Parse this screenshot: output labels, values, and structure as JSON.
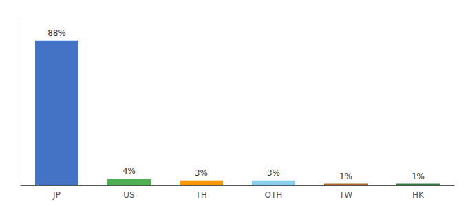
{
  "chart_data": {
    "type": "bar",
    "categories": [
      "JP",
      "US",
      "TH",
      "OTH",
      "TW",
      "HK"
    ],
    "values": [
      88,
      4,
      3,
      3,
      1,
      1
    ],
    "value_labels": [
      "88%",
      "4%",
      "3%",
      "3%",
      "1%",
      "1%"
    ],
    "data_labels": true,
    "colors": [
      "#4472c4",
      "#4caf50",
      "#ff9800",
      "#87ceeb",
      "#b5651d",
      "#3a7d44"
    ],
    "ylim": [
      0,
      100
    ],
    "tick_labels": "x",
    "grid": false
  }
}
